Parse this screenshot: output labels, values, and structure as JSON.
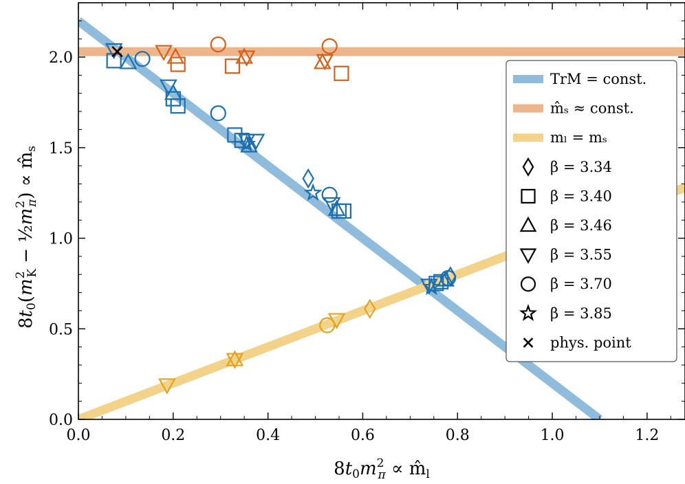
{
  "chart_data": {
    "type": "scatter",
    "xlabel": "8t₀m²π ∝ m̂ₗ",
    "ylabel": "8t₀(m²K − ½m²π) ∝ m̂ₛ",
    "xlim": [
      0.0,
      1.28
    ],
    "ylim": [
      0.0,
      2.3
    ],
    "x_ticks": [
      "0.0",
      "0.2",
      "0.4",
      "0.6",
      "0.8",
      "1.0",
      "1.2"
    ],
    "x_tick_values": [
      0.0,
      0.2,
      0.4,
      0.6,
      0.8,
      1.0,
      1.2
    ],
    "y_ticks": [
      "0.0",
      "0.5",
      "1.0",
      "1.5",
      "2.0"
    ],
    "y_tick_values": [
      0.0,
      0.5,
      1.0,
      1.5,
      2.0
    ],
    "grid": false,
    "legend_position": "right",
    "lines": [
      {
        "name": "TrM = const.",
        "color": "#8fbcdc",
        "points": [
          [
            0.0,
            2.2
          ],
          [
            1.1,
            0.0
          ]
        ]
      },
      {
        "name": "m̂ₛ ≈ const.",
        "color": "#eeb48a",
        "points": [
          [
            0.0,
            2.03
          ],
          [
            1.28,
            2.03
          ]
        ]
      },
      {
        "name": "mₗ = mₛ",
        "color": "#f3d38a",
        "points": [
          [
            0.0,
            0.0
          ],
          [
            1.28,
            1.28
          ]
        ]
      }
    ],
    "legend_lines": [
      "TrM = const.",
      "m̂ₛ ≈ const.",
      "mₗ = mₛ"
    ],
    "legend_markers": [
      {
        "marker": "diamond",
        "label": "β = 3.34"
      },
      {
        "marker": "square",
        "label": "β = 3.40"
      },
      {
        "marker": "triangle-up",
        "label": "β = 3.46"
      },
      {
        "marker": "triangle-down",
        "label": "β = 3.55"
      },
      {
        "marker": "circle",
        "label": "β = 3.70"
      },
      {
        "marker": "star",
        "label": "β = 3.85"
      },
      {
        "marker": "x",
        "label": "phys. point"
      }
    ],
    "series": [
      {
        "group": "TrM = const.",
        "color": "#1b6fae",
        "points": [
          {
            "m": "triangle-down",
            "x": 0.075,
            "y": 2.04
          },
          {
            "m": "square",
            "x": 0.075,
            "y": 1.98
          },
          {
            "m": "triangle-up",
            "x": 0.105,
            "y": 1.97
          },
          {
            "m": "circle",
            "x": 0.135,
            "y": 1.99
          },
          {
            "m": "triangle-down",
            "x": 0.19,
            "y": 1.84
          },
          {
            "m": "triangle-up",
            "x": 0.2,
            "y": 1.8
          },
          {
            "m": "square",
            "x": 0.2,
            "y": 1.77
          },
          {
            "m": "square",
            "x": 0.21,
            "y": 1.73
          },
          {
            "m": "circle",
            "x": 0.295,
            "y": 1.69
          },
          {
            "m": "square",
            "x": 0.33,
            "y": 1.57
          },
          {
            "m": "square",
            "x": 0.345,
            "y": 1.54
          },
          {
            "m": "triangle-down",
            "x": 0.355,
            "y": 1.54
          },
          {
            "m": "triangle-up",
            "x": 0.36,
            "y": 1.51
          },
          {
            "m": "star",
            "x": 0.355,
            "y": 1.52
          },
          {
            "m": "triangle-down",
            "x": 0.375,
            "y": 1.54
          },
          {
            "m": "diamond",
            "x": 0.485,
            "y": 1.33
          },
          {
            "m": "star",
            "x": 0.495,
            "y": 1.25
          },
          {
            "m": "circle",
            "x": 0.53,
            "y": 1.24
          },
          {
            "m": "triangle-down",
            "x": 0.535,
            "y": 1.19
          },
          {
            "m": "triangle-up",
            "x": 0.545,
            "y": 1.16
          },
          {
            "m": "square",
            "x": 0.55,
            "y": 1.15
          },
          {
            "m": "square",
            "x": 0.56,
            "y": 1.15
          },
          {
            "m": "triangle-down",
            "x": 0.74,
            "y": 0.74
          },
          {
            "m": "star",
            "x": 0.745,
            "y": 0.73
          },
          {
            "m": "square",
            "x": 0.755,
            "y": 0.75
          },
          {
            "m": "square",
            "x": 0.765,
            "y": 0.76
          },
          {
            "m": "triangle-up",
            "x": 0.775,
            "y": 0.77
          },
          {
            "m": "circle",
            "x": 0.78,
            "y": 0.78
          },
          {
            "m": "diamond",
            "x": 0.785,
            "y": 0.79
          }
        ]
      },
      {
        "group": "m̂ₛ ≈ const.",
        "color": "#d4601a",
        "points": [
          {
            "m": "square",
            "x": 0.21,
            "y": 1.96
          },
          {
            "m": "triangle-down",
            "x": 0.18,
            "y": 2.03
          },
          {
            "m": "triangle-up",
            "x": 0.205,
            "y": 2.0
          },
          {
            "m": "circle",
            "x": 0.295,
            "y": 2.07
          },
          {
            "m": "square",
            "x": 0.325,
            "y": 1.95
          },
          {
            "m": "triangle-up",
            "x": 0.35,
            "y": 2.0
          },
          {
            "m": "triangle-down",
            "x": 0.355,
            "y": 2.0
          },
          {
            "m": "triangle-up",
            "x": 0.515,
            "y": 1.97
          },
          {
            "m": "triangle-down",
            "x": 0.52,
            "y": 1.98
          },
          {
            "m": "circle",
            "x": 0.53,
            "y": 2.06
          },
          {
            "m": "square",
            "x": 0.555,
            "y": 1.91
          }
        ]
      },
      {
        "group": "mₗ = mₛ",
        "color": "#e5a21c",
        "points": [
          {
            "m": "triangle-down",
            "x": 0.187,
            "y": 0.19
          },
          {
            "m": "triangle-up",
            "x": 0.33,
            "y": 0.33
          },
          {
            "m": "triangle-down",
            "x": 0.33,
            "y": 0.33
          },
          {
            "m": "circle",
            "x": 0.525,
            "y": 0.52
          },
          {
            "m": "triangle-down",
            "x": 0.545,
            "y": 0.55
          },
          {
            "m": "diamond",
            "x": 0.615,
            "y": 0.61
          }
        ]
      }
    ],
    "phys_point": {
      "x": 0.082,
      "y": 2.03,
      "color": "#000000"
    }
  }
}
